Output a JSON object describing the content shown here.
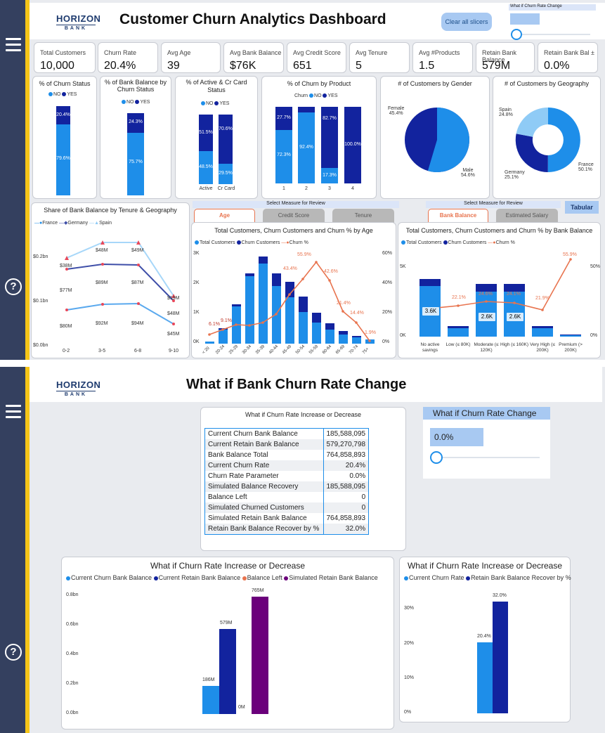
{
  "p1": {
    "logo": {
      "line1": "HORIZON",
      "line2": "BANK"
    },
    "title": "Customer Churn Analytics Dashboard",
    "clear_slicers": "Clear all slicers",
    "whatif_label": "What if Churn Rate Change",
    "kpis": [
      {
        "label": "Total Customers",
        "value": "10,000"
      },
      {
        "label": "Churn Rate",
        "value": "20.4%"
      },
      {
        "label": "Avg Age",
        "value": "39"
      },
      {
        "label": "Avg Bank Balance",
        "value": "$76K"
      },
      {
        "label": "Avg Credit Score",
        "value": "651"
      },
      {
        "label": "Avg Tenure",
        "value": "5"
      },
      {
        "label": "Avg #Products",
        "value": "1.5"
      },
      {
        "label": "Retain Bank Balance",
        "value": "579M"
      },
      {
        "label": "Retain Bank Bal ±",
        "value": "0.0%"
      }
    ],
    "legend_no": "NO",
    "legend_yes": "YES",
    "legend_churn": "Churn",
    "churn_status": {
      "title": "% of Churn Status",
      "yes": "20.4%",
      "no": "79.6%"
    },
    "balance_status": {
      "title": "% of Bank Balance by Churn Status",
      "yes": "24.3%",
      "no": "75.7%"
    },
    "active_card": {
      "title": "% of Active & Cr Card Status",
      "cats": [
        "Active",
        "Cr Card"
      ],
      "yes": [
        "51.5%",
        "70.6%"
      ],
      "no": [
        "48.5%",
        "29.5%"
      ]
    },
    "product": {
      "title": "% of Churn by Product",
      "cats": [
        "1",
        "2",
        "3",
        "4"
      ],
      "yes": [
        "27.7%",
        "",
        "82.7%",
        "100.0%"
      ],
      "no": [
        "72.3%",
        "92.4%",
        "17.3%",
        ""
      ]
    },
    "gender": {
      "title": "# of Customers by Gender",
      "female": "Female",
      "female_pct": "45.4%",
      "male": "Male",
      "male_pct": "54.6%"
    },
    "geography": {
      "title": "# of Customers by Geography",
      "spain": "Spain",
      "spain_pct": "24.8%",
      "germany": "Germany",
      "germany_pct": "25.1%",
      "france": "France",
      "france_pct": "50.1%"
    },
    "tenure_geo": {
      "title": "Share of Bank Balance by Tenure & Geography",
      "legend": [
        "France",
        "Germany",
        "Spain"
      ],
      "yticks": [
        "$0.2bn",
        "$0.1bn",
        "$0.0bn"
      ],
      "xcats": [
        "0-2",
        "3-5",
        "6-8",
        "9-10"
      ],
      "labels_spain": [
        "$38M",
        "$48M",
        "$49M",
        "$19M"
      ],
      "labels_germany": [
        "$77M",
        "$89M",
        "$87M",
        "$48M"
      ],
      "labels_france": [
        "$80M",
        "$92M",
        "$94M",
        "$45M"
      ]
    },
    "select_measure": "Select Measure for Review",
    "tabs_left": [
      "Age",
      "Credit Score",
      "Tenure"
    ],
    "tabs_right": [
      "Bank Balance",
      "Estimated Salary"
    ],
    "tabular": "Tabular",
    "age_chart": {
      "title": "Total Customers, Churn Customers and Churn % by Age",
      "legend": [
        "Total Customers",
        "Churn Customers",
        "Churn %"
      ],
      "yticks": [
        "3K",
        "2K",
        "1K",
        "0K"
      ],
      "y2ticks": [
        "60%",
        "40%",
        "20%",
        "0%"
      ],
      "cats": [
        "< 20",
        "20-24",
        "25-29",
        "30-34",
        "35-39",
        "40-44",
        "45-49",
        "50-54",
        "55-59",
        "60-64",
        "65-69",
        "70-74",
        "75+"
      ],
      "pct_labels": [
        "6.1%",
        "9.1%",
        "",
        "",
        "",
        "",
        "",
        "43.4%",
        "55.9%",
        "42.6%",
        "21.4%",
        "14.4%",
        "1.9%"
      ]
    },
    "balance_chart": {
      "title": "Total Customers, Churn Customers and Churn % by Bank Balance",
      "legend": [
        "Total Customers",
        "Churn Customers",
        "Churn %"
      ],
      "yticks": [
        "5K",
        "0K"
      ],
      "y2ticks": [
        "50%",
        "0%"
      ],
      "cats": [
        "No active savings",
        "Low (≤ 80K)",
        "Moderate (≤ 120K)",
        "High (≤ 160K)",
        "Very High (≤ 200K)",
        "Premium (> 200K)"
      ],
      "bar_labels": [
        "3.6K",
        "",
        "2.6K",
        "2.6K",
        "",
        ""
      ],
      "pct_labels": [
        "",
        "22.1%",
        "24.6%",
        "24.1%",
        "21.9%",
        "55.9%"
      ]
    }
  },
  "p2": {
    "logo": {
      "line1": "HORIZON",
      "line2": "BANK"
    },
    "title": "What if Bank Churn Rate Change",
    "table_title": "What if Churn Rate Increase or Decrease",
    "rows": [
      [
        "Current Churn Bank Balance",
        "185,588,095"
      ],
      [
        "Current Retain Bank Balance",
        "579,270,798"
      ],
      [
        "Bank Balance Total",
        "764,858,893"
      ],
      [
        "Current Churn Rate",
        "20.4%"
      ],
      [
        "Churn Rate Parameter",
        "0.0%"
      ],
      [
        "Simulated Balance Recovery",
        "185,588,095"
      ],
      [
        "Balance Left",
        "0"
      ],
      [
        "Simulated Churned Customers",
        "0"
      ],
      [
        "Simulated Retain Bank Balance",
        "764,858,893"
      ],
      [
        "Retain Bank Balance Recover by %",
        "32.0%"
      ]
    ],
    "slicer_title": "What if Churn Rate Change",
    "slicer_value": "0.0%",
    "bar1": {
      "title": "What if Churn Rate Increase or Decrease",
      "legend": [
        "Current Churn Bank Balance",
        "Current Retain Bank Balance",
        "Balance Left",
        "Simulated Retain Bank Balance"
      ],
      "yticks": [
        "0.8bn",
        "0.6bn",
        "0.4bn",
        "0.2bn",
        "0.0bn"
      ],
      "labels": [
        "186M",
        "579M",
        "0M",
        "765M"
      ]
    },
    "bar2": {
      "title": "What if Churn Rate Increase or Decrease",
      "legend": [
        "Current Churn Rate",
        "Retain Bank Balance Recover by %"
      ],
      "yticks": [
        "30%",
        "20%",
        "10%",
        "0%"
      ],
      "labels": [
        "20.4%",
        "32.0%"
      ]
    }
  },
  "colors": {
    "light": "#1e8ee9",
    "dark": "#12239e",
    "orange": "#e8744f",
    "purple": "#6b007b",
    "sidebar": "#34405f",
    "accent": "#f5c518"
  }
}
